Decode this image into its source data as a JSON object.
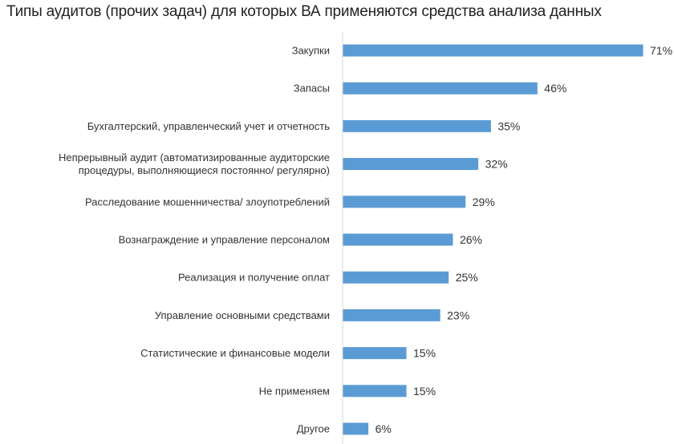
{
  "chart_data": {
    "type": "bar",
    "orientation": "horizontal",
    "title": "Типы аудитов (прочих задач) для которых ВА применяются средства анализа данных",
    "categories": [
      [
        "Закупки"
      ],
      [
        "Запасы"
      ],
      [
        "Бухгалтерский, управленческий учет и отчетность"
      ],
      [
        "Непрерывный аудит (автоматизированные аудиторские",
        "процедуры, выполняющиеся постоянно/ регулярно)"
      ],
      [
        "Расследование мошенничества/ злоупотреблений"
      ],
      [
        "Вознаграждение и управление персоналом"
      ],
      [
        "Реализация и получение оплат"
      ],
      [
        "Управление основными средствами"
      ],
      [
        "Статистические и финансовые модели"
      ],
      [
        "Не применяем"
      ],
      [
        "Другое"
      ]
    ],
    "values": [
      71,
      46,
      35,
      32,
      29,
      26,
      25,
      23,
      15,
      15,
      6
    ],
    "value_labels": [
      "71%",
      "46%",
      "35%",
      "32%",
      "29%",
      "26%",
      "25%",
      "23%",
      "15%",
      "15%",
      "6%"
    ],
    "unit": "%",
    "xlim": [
      0,
      71
    ],
    "grid": false,
    "legend": "none",
    "bar_color": "#5b9bd5",
    "axis_color": "#d9d9d9"
  }
}
